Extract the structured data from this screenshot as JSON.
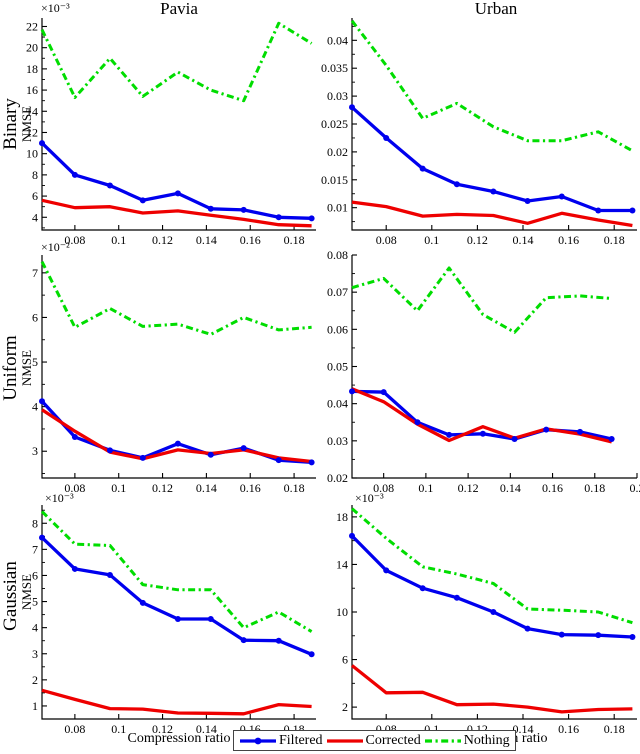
{
  "titles": {
    "col1": "Pavia",
    "col2": "Urban"
  },
  "row_labels": [
    {
      "name": "Binary",
      "sub": "NMSE"
    },
    {
      "name": "Uniform",
      "sub": "NMSE"
    },
    {
      "name": "Gaussian",
      "sub": "NMSE"
    }
  ],
  "x_axis_label": "Compression ratio",
  "legend": {
    "position": "bottom-center",
    "items": [
      {
        "label": "Filtered",
        "color": "#0000ee",
        "style": "solid",
        "marker": "circle"
      },
      {
        "label": "Corrected",
        "color": "#ee0000",
        "style": "solid",
        "marker": "none"
      },
      {
        "label": "Nothing",
        "color": "#00dd00",
        "style": "dashdot",
        "marker": "none"
      }
    ]
  },
  "chart_data": [
    {
      "type": "line",
      "row": "Binary",
      "col": "Pavia",
      "exponent": "×10⁻³",
      "grid": false,
      "x": [
        0.065,
        0.08,
        0.096,
        0.111,
        0.127,
        0.142,
        0.157,
        0.173,
        0.188
      ],
      "xlim": [
        0.065,
        0.19
      ],
      "xticks": [
        0.08,
        0.1,
        0.12,
        0.14,
        0.16,
        0.18
      ],
      "ylim": [
        2.8,
        22.8
      ],
      "yticks": [
        4,
        6,
        8,
        10,
        12,
        14,
        16,
        18,
        20,
        22
      ],
      "series": [
        {
          "name": "Filtered",
          "values": [
            11.0,
            8.0,
            7.0,
            5.6,
            6.25,
            4.8,
            4.7,
            4.0,
            3.9
          ]
        },
        {
          "name": "Corrected",
          "values": [
            5.6,
            4.9,
            5.0,
            4.4,
            4.6,
            4.2,
            3.8,
            3.3,
            3.2
          ]
        },
        {
          "name": "Nothing",
          "values": [
            21.7,
            15.3,
            19.0,
            15.4,
            17.7,
            16.0,
            15.0,
            22.3,
            20.4
          ]
        }
      ]
    },
    {
      "type": "line",
      "row": "Binary",
      "col": "Urban",
      "exponent": "",
      "grid": false,
      "x": [
        0.065,
        0.08,
        0.096,
        0.111,
        0.127,
        0.142,
        0.157,
        0.173,
        0.188
      ],
      "xlim": [
        0.065,
        0.19
      ],
      "xticks": [
        0.08,
        0.1,
        0.12,
        0.14,
        0.16,
        0.18
      ],
      "ylim": [
        0.006,
        0.044
      ],
      "yticks": [
        0.01,
        0.015,
        0.02,
        0.025,
        0.03,
        0.035,
        0.04
      ],
      "series": [
        {
          "name": "Filtered",
          "values": [
            0.028,
            0.0225,
            0.017,
            0.0142,
            0.0129,
            0.0112,
            0.012,
            0.0095,
            0.0095
          ]
        },
        {
          "name": "Corrected",
          "values": [
            0.011,
            0.0102,
            0.0085,
            0.0088,
            0.0086,
            0.0072,
            0.009,
            0.0078,
            0.0068
          ]
        },
        {
          "name": "Nothing",
          "values": [
            0.0435,
            0.0355,
            0.026,
            0.0287,
            0.0245,
            0.022,
            0.022,
            0.0236,
            0.0202
          ]
        }
      ]
    },
    {
      "type": "line",
      "row": "Uniform",
      "col": "Pavia",
      "exponent": "×10⁻²",
      "grid": false,
      "x": [
        0.065,
        0.08,
        0.096,
        0.111,
        0.127,
        0.142,
        0.157,
        0.173,
        0.188
      ],
      "xlim": [
        0.065,
        0.19
      ],
      "xticks": [
        0.08,
        0.1,
        0.12,
        0.14,
        0.16,
        0.18
      ],
      "ylim": [
        2.4,
        7.4
      ],
      "yticks": [
        3,
        4,
        5,
        6,
        7
      ],
      "series": [
        {
          "name": "Filtered",
          "values": [
            4.12,
            3.32,
            3.02,
            2.85,
            3.17,
            2.92,
            3.07,
            2.8,
            2.75
          ]
        },
        {
          "name": "Corrected",
          "values": [
            3.93,
            3.45,
            2.98,
            2.83,
            3.03,
            2.95,
            3.03,
            2.85,
            2.77
          ]
        },
        {
          "name": "Nothing",
          "values": [
            7.25,
            5.78,
            6.2,
            5.8,
            5.85,
            5.62,
            6.0,
            5.72,
            5.78
          ]
        }
      ]
    },
    {
      "type": "line",
      "row": "Uniform",
      "col": "Urban",
      "exponent": "",
      "grid": false,
      "x": [
        0.065,
        0.08,
        0.096,
        0.111,
        0.127,
        0.142,
        0.157,
        0.173,
        0.188
      ],
      "xlim": [
        0.065,
        0.2
      ],
      "xticks": [
        0.08,
        0.1,
        0.12,
        0.14,
        0.16,
        0.18,
        0.2
      ],
      "ylim": [
        0.02,
        0.08
      ],
      "yticks": [
        0.02,
        0.03,
        0.04,
        0.05,
        0.06,
        0.07,
        0.08
      ],
      "series": [
        {
          "name": "Filtered",
          "values": [
            0.0433,
            0.0431,
            0.035,
            0.0316,
            0.0319,
            0.0305,
            0.033,
            0.0324,
            0.0305
          ]
        },
        {
          "name": "Corrected",
          "values": [
            0.044,
            0.0405,
            0.0345,
            0.0301,
            0.0338,
            0.0307,
            0.0332,
            0.0318,
            0.0297
          ]
        },
        {
          "name": "Nothing",
          "values": [
            0.0712,
            0.0737,
            0.065,
            0.0765,
            0.064,
            0.0592,
            0.0685,
            0.069,
            0.0683
          ]
        }
      ]
    },
    {
      "type": "line",
      "row": "Gaussian",
      "col": "Pavia",
      "exponent": "×10⁻³",
      "grid": false,
      "x": [
        0.065,
        0.08,
        0.096,
        0.111,
        0.127,
        0.142,
        0.157,
        0.173,
        0.188
      ],
      "xlim": [
        0.065,
        0.19
      ],
      "xticks": [
        0.08,
        0.1,
        0.12,
        0.14,
        0.16,
        0.18
      ],
      "ylim": [
        0.5,
        8.7
      ],
      "yticks": [
        1,
        2,
        3,
        4,
        5,
        6,
        7,
        8
      ],
      "series": [
        {
          "name": "Filtered",
          "values": [
            7.45,
            6.25,
            6.02,
            4.95,
            4.33,
            4.33,
            3.52,
            3.5,
            2.98
          ]
        },
        {
          "name": "Corrected",
          "values": [
            1.6,
            1.25,
            0.9,
            0.88,
            0.73,
            0.72,
            0.7,
            1.05,
            0.98
          ]
        },
        {
          "name": "Nothing",
          "values": [
            8.45,
            7.2,
            7.15,
            5.65,
            5.45,
            5.45,
            4.0,
            4.6,
            3.85
          ]
        }
      ]
    },
    {
      "type": "line",
      "row": "Gaussian",
      "col": "Urban",
      "exponent": "×10⁻³",
      "grid": false,
      "x": [
        0.065,
        0.08,
        0.096,
        0.111,
        0.127,
        0.142,
        0.157,
        0.173,
        0.188
      ],
      "xlim": [
        0.065,
        0.19
      ],
      "xticks": [
        0.08,
        0.1,
        0.12,
        0.14,
        0.16,
        0.18
      ],
      "ylim": [
        1,
        19
      ],
      "yticks": [
        2,
        6,
        10,
        14,
        18
      ],
      "series": [
        {
          "name": "Filtered",
          "values": [
            16.4,
            13.5,
            12.0,
            11.2,
            10.0,
            8.6,
            8.1,
            8.05,
            7.9
          ]
        },
        {
          "name": "Corrected",
          "values": [
            5.5,
            3.2,
            3.25,
            2.2,
            2.25,
            2.0,
            1.6,
            1.8,
            1.85
          ]
        },
        {
          "name": "Nothing",
          "values": [
            18.7,
            16.2,
            13.8,
            13.2,
            12.4,
            10.25,
            10.15,
            10.0,
            9.1
          ]
        }
      ]
    }
  ]
}
